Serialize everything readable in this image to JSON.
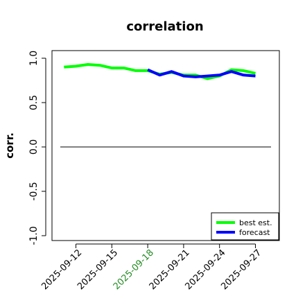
{
  "chart_data": {
    "type": "line",
    "title": "correlation",
    "xlabel": "",
    "ylabel": "corr.",
    "ylim": [
      -1.0,
      1.0
    ],
    "yticks": [
      -1.0,
      -0.5,
      0.0,
      0.5,
      1.0
    ],
    "ytick_labels": [
      "-1.0",
      "-0.5",
      "0.0",
      "0.5",
      "1.0"
    ],
    "xlim": [
      "2025-09-10",
      "2025-09-29"
    ],
    "xticks": [
      "2025-09-12",
      "2025-09-15",
      "2025-09-18",
      "2025-09-21",
      "2025-09-24",
      "2025-09-27"
    ],
    "xtick_labels": [
      "2025-09-12",
      "2025-09-15",
      "2025-09-18",
      "2025-09-21",
      "2025-09-24",
      "2025-09-27"
    ],
    "xtick_colors": [
      "#000000",
      "#000000",
      "#228b22",
      "#000000",
      "#000000",
      "#000000"
    ],
    "reference_line": {
      "y": 0.0,
      "color": "#000000"
    },
    "grid": false,
    "legend_position": "bottom-right",
    "series": [
      {
        "name": "best est.",
        "color": "#00ff00",
        "x": [
          "2025-09-11",
          "2025-09-12",
          "2025-09-13",
          "2025-09-14",
          "2025-09-15",
          "2025-09-16",
          "2025-09-17",
          "2025-09-18",
          "2025-09-19",
          "2025-09-20",
          "2025-09-21",
          "2025-09-22",
          "2025-09-23",
          "2025-09-24",
          "2025-09-25",
          "2025-09-26",
          "2025-09-27"
        ],
        "values": [
          0.9,
          0.91,
          0.93,
          0.92,
          0.89,
          0.89,
          0.86,
          0.86,
          0.82,
          0.84,
          0.81,
          0.81,
          0.77,
          0.8,
          0.87,
          0.86,
          0.83
        ]
      },
      {
        "name": "forecast",
        "color": "#0000ff",
        "x": [
          "2025-09-18",
          "2025-09-19",
          "2025-09-20",
          "2025-09-21",
          "2025-09-22",
          "2025-09-23",
          "2025-09-24",
          "2025-09-25",
          "2025-09-26",
          "2025-09-27"
        ],
        "values": [
          0.87,
          0.81,
          0.85,
          0.8,
          0.79,
          0.8,
          0.81,
          0.85,
          0.81,
          0.8
        ]
      }
    ]
  }
}
